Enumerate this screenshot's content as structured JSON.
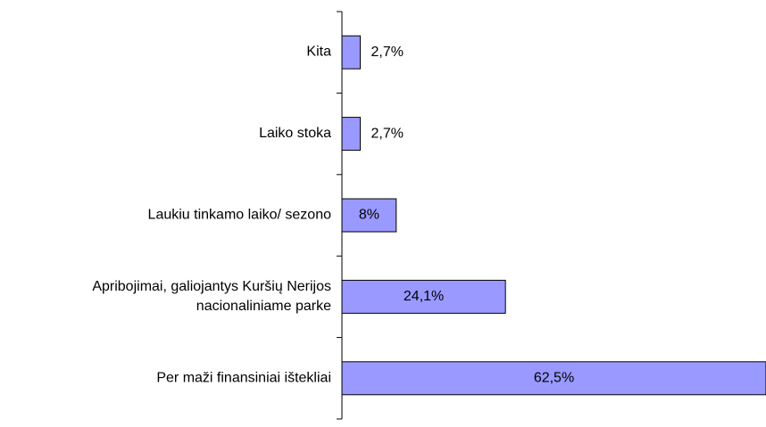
{
  "chart_data": {
    "type": "barh",
    "categories": [
      "Kita",
      "Laiko stoka",
      "Laukiu tinkamo laiko/ sezono",
      "Apribojimai, galiojantys Kuršių Nerijos nacionaliniame parke",
      "Per maži finansiniai ištekliai"
    ],
    "values": [
      2.7,
      2.7,
      8,
      24.1,
      62.5
    ],
    "value_labels": [
      "2,7%",
      "2,7%",
      "8%",
      "24,1%",
      "62,5%"
    ],
    "color": "#9999ff"
  }
}
